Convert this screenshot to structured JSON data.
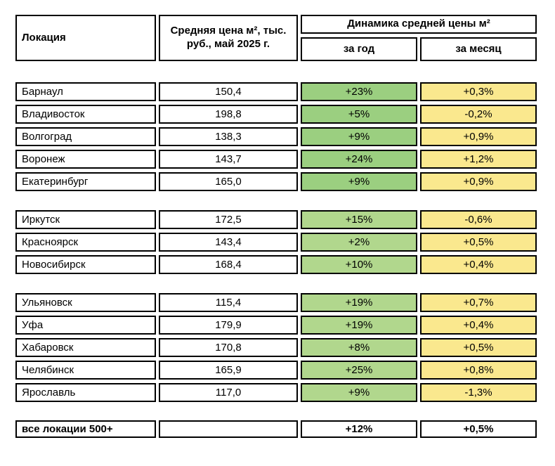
{
  "chart_data": {
    "type": "table",
    "header": {
      "location": "Локация",
      "price": "Средняя цена м², тыс. руб., май 2025 г.",
      "dynamics": "Динамика средней цены м²",
      "year": "за год",
      "month": "за месяц"
    },
    "groups": [
      {
        "rows": [
          {
            "city": "Барнаул",
            "price": "150,4",
            "year": "+23%",
            "month": "+0,3%"
          },
          {
            "city": "Владивосток",
            "price": "198,8",
            "year": "+5%",
            "month": "-0,2%"
          },
          {
            "city": "Волгоград",
            "price": "138,3",
            "year": "+9%",
            "month": "+0,9%"
          },
          {
            "city": "Воронеж",
            "price": "143,7",
            "year": "+24%",
            "month": "+1,2%"
          },
          {
            "city": "Екатеринбург",
            "price": "165,0",
            "year": "+9%",
            "month": "+0,9%"
          }
        ]
      },
      {
        "rows": [
          {
            "city": "Иркутск",
            "price": "172,5",
            "year": "+15%",
            "month": "-0,6%"
          },
          {
            "city": "Красноярск",
            "price": "143,4",
            "year": "+2%",
            "month": "+0,5%"
          },
          {
            "city": "Новосибирск",
            "price": "168,4",
            "year": "+10%",
            "month": "+0,4%"
          }
        ]
      },
      {
        "rows": [
          {
            "city": "Ульяновск",
            "price": "115,4",
            "year": "+19%",
            "month": "+0,7%"
          },
          {
            "city": "Уфа",
            "price": "179,9",
            "year": "+19%",
            "month": "+0,4%"
          },
          {
            "city": "Хабаровск",
            "price": "170,8",
            "year": "+8%",
            "month": "+0,5%"
          },
          {
            "city": "Челябинск",
            "price": "165,9",
            "year": "+25%",
            "month": "+0,8%"
          },
          {
            "city": "Ярославль",
            "price": "117,0",
            "year": "+9%",
            "month": "-1,3%"
          }
        ]
      }
    ],
    "footer": {
      "label": "все локации 500+",
      "price": "",
      "year": "+12%",
      "month": "+0,5%"
    }
  },
  "colors": {
    "green_group1": "#9BCF80",
    "green_group23": "#B1D78D",
    "yellow": "#FAE88E",
    "border": "#000000"
  }
}
